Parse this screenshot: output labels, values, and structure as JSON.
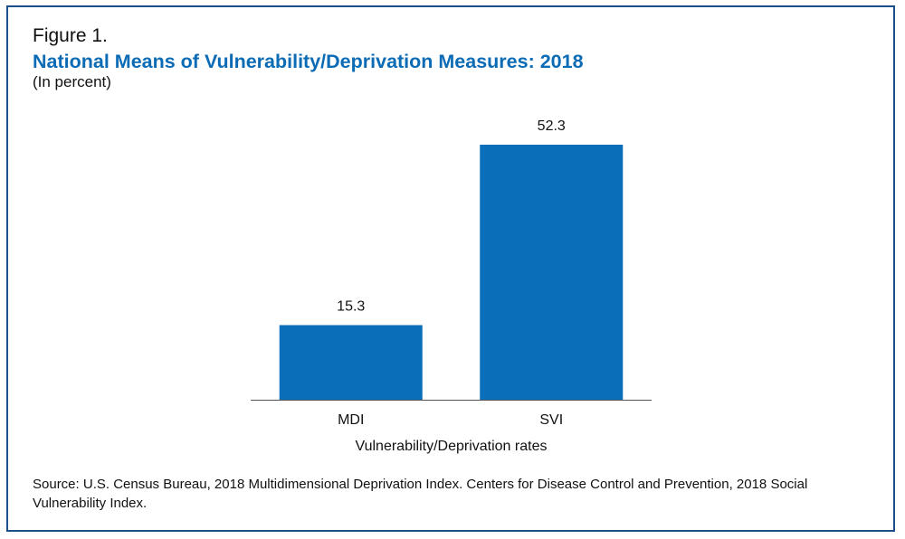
{
  "figure": {
    "label": "Figure 1.",
    "title": "National Means of Vulnerability/Deprivation Measures: 2018",
    "subtitle": "(In percent)",
    "source": "Source: U.S. Census Bureau, 2018 Multidimensional Deprivation Index. Centers for Disease Control and Prevention, 2018 Social Vulnerability Index."
  },
  "colors": {
    "title": "#0b6bb5",
    "bar": "#0a6eb8",
    "frame": "#1a4f8a",
    "axis": "#555555"
  },
  "chart_data": {
    "type": "bar",
    "categories": [
      "MDI",
      "SVI"
    ],
    "values": [
      15.3,
      52.3
    ],
    "data_labels": [
      "15.3",
      "52.3"
    ],
    "title": "National Means of Vulnerability/Deprivation Measures: 2018",
    "subtitle": "(In percent)",
    "xlabel": "Vulnerability/Deprivation rates",
    "ylabel": "",
    "ylim": [
      0,
      52.3
    ],
    "grid": false,
    "legend": "none"
  }
}
